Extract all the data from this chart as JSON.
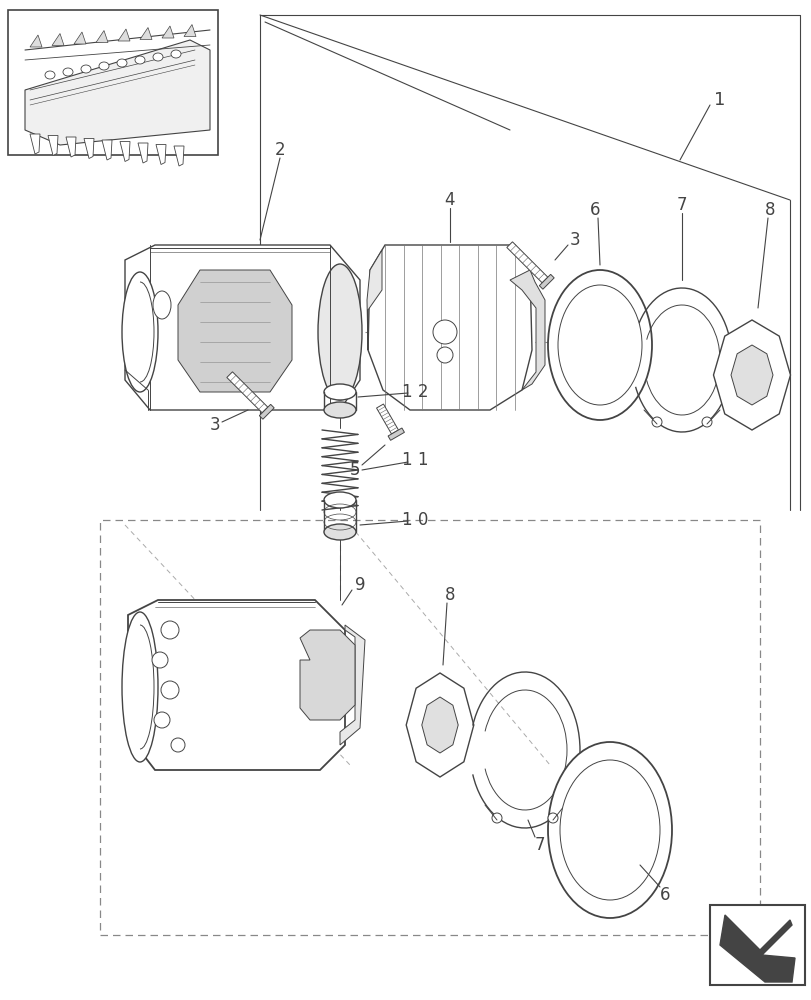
{
  "background_color": "#ffffff",
  "figure_width": 8.12,
  "figure_height": 10.0,
  "dpi": 100,
  "gray": "#333333",
  "light_gray": "#aaaaaa",
  "line_color": "#444444"
}
